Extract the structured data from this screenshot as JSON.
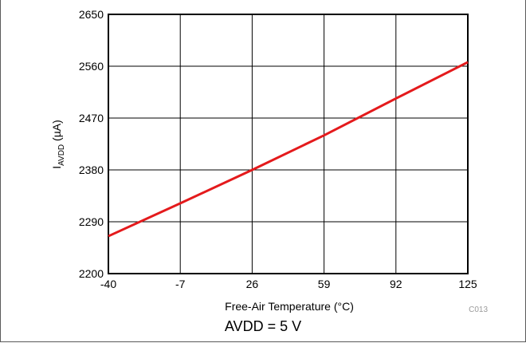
{
  "chart_data": {
    "type": "line",
    "xlabel": "Free-Air Temperature (°C)",
    "ylabel_main": "I",
    "ylabel_sub": "AVDD",
    "ylabel_unit": " (µA)",
    "x_ticks": [
      -40,
      -7,
      26,
      59,
      92,
      125
    ],
    "y_ticks": [
      2200,
      2290,
      2380,
      2470,
      2560,
      2650
    ],
    "xlim": [
      -40,
      125
    ],
    "ylim": [
      2200,
      2650
    ],
    "grid": true,
    "series": [
      {
        "color": "#e41a1c",
        "x": [
          -40,
          -7,
          26,
          59,
          92,
          125
        ],
        "y": [
          2265,
          2322,
          2380,
          2440,
          2504,
          2567
        ]
      }
    ],
    "figure_code": "C013"
  },
  "caption": "AVDD = 5 V"
}
